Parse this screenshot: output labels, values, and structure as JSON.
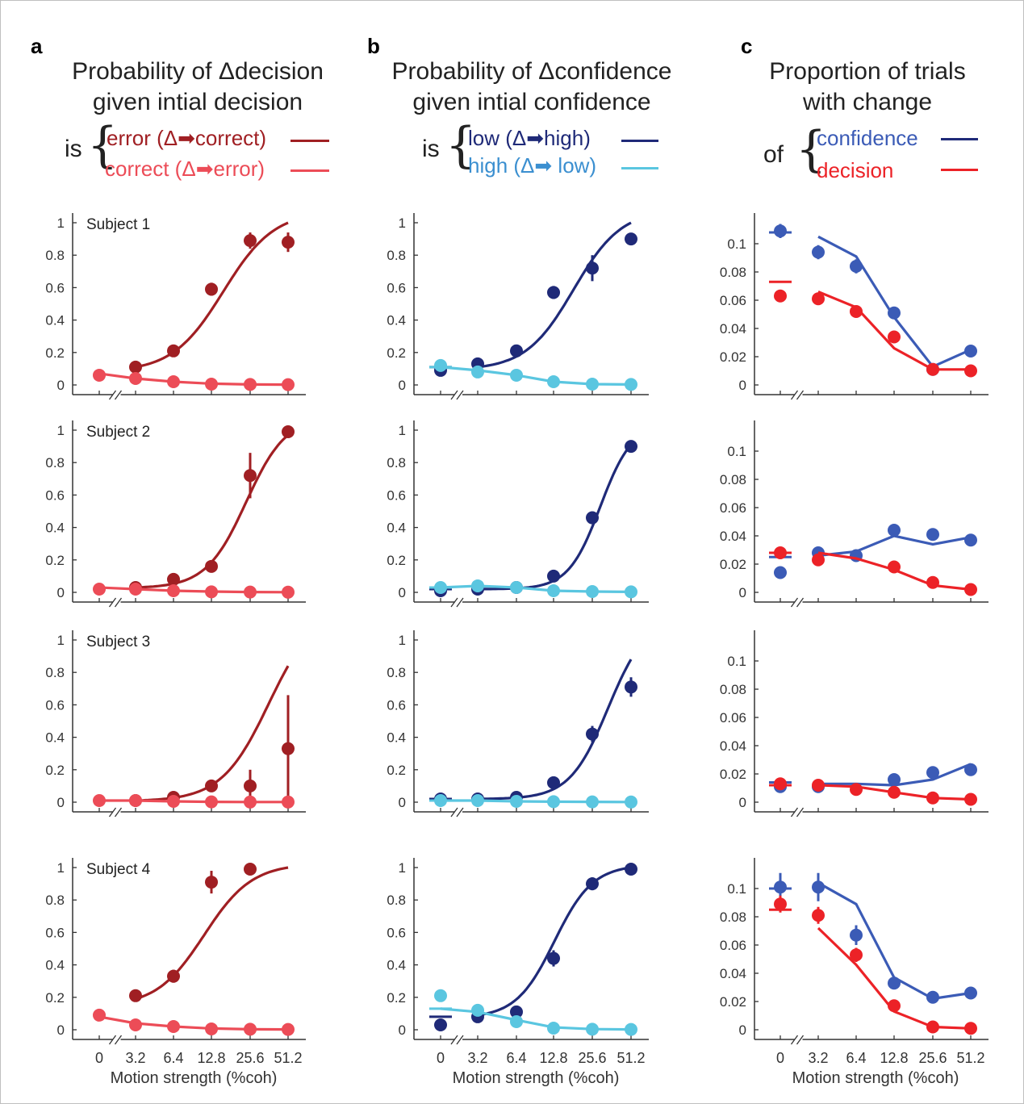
{
  "panels": [
    {
      "letter": "a",
      "title_line1": "Probability of Δdecision",
      "title_line2": "given intial decision",
      "legend_word": "is",
      "legend": [
        {
          "label": "error (Δ➡correct)",
          "color": "#a01f23"
        },
        {
          "label": "correct (Δ➡error)",
          "color": "#ec4c57"
        }
      ]
    },
    {
      "letter": "b",
      "title_line1": "Probability of Δconfidence",
      "title_line2": "given intial confidence",
      "legend_word": "is",
      "legend": [
        {
          "label": "low  (Δ➡high)",
          "color": "#1f2a78"
        },
        {
          "label": "high (Δ➡ low)",
          "color": "#5ac6e0"
        }
      ]
    },
    {
      "letter": "c",
      "title_line1": "Proportion of trials",
      "title_line2": "with change",
      "legend_word": "of",
      "legend": [
        {
          "label": "confidence",
          "color": "#3b5bb6"
        },
        {
          "label": "decision",
          "color": "#ec2227"
        }
      ]
    }
  ],
  "subjects": [
    "Subject 1",
    "Subject 2",
    "Subject 3",
    "Subject 4"
  ],
  "xlabel": "Motion strength (%coh)",
  "xticks": [
    "0",
    "3.2",
    "6.4",
    "12.8",
    "25.6",
    "51.2"
  ],
  "yticks_ab": [
    "0",
    "0.2",
    "0.4",
    "0.6",
    "0.8",
    "1"
  ],
  "yticks_c": [
    "0",
    "0.02",
    "0.04",
    "0.06",
    "0.08",
    "0.1"
  ],
  "colors": {
    "a_error": "#a01f23",
    "a_correct": "#ec4c57",
    "b_low": "#1f2a78",
    "b_high": "#5ac6e0",
    "c_conf_points": "#3b5bb6",
    "c_dec": "#ec2227"
  },
  "chart_data": [
    {
      "panel": "a",
      "subject": "Subject 1",
      "type": "scatter",
      "ylim": [
        0,
        1
      ],
      "categories": [
        "0",
        "3.2",
        "6.4",
        "12.8",
        "25.6",
        "51.2"
      ],
      "series": [
        {
          "name": "error (Δ➡correct)",
          "points": [
            null,
            0.11,
            0.21,
            0.59,
            0.89,
            0.88
          ],
          "err": [
            0,
            0.02,
            0.02,
            0.04,
            0.05,
            0.06
          ],
          "fit_start": 0.11,
          "fit_end": 1.0,
          "fit_mid": 3.3,
          "fit_slope": 1.5
        },
        {
          "name": "correct (Δ➡error)",
          "points": [
            0.06,
            0.04,
            0.02,
            0.005,
            0.003,
            0.002
          ],
          "err": [
            0.01,
            0.01,
            0.01,
            0,
            0,
            0
          ],
          "fit_line": [
            0.07,
            0.04,
            0.02,
            0.008,
            0.003,
            0.002
          ]
        }
      ]
    },
    {
      "panel": "a",
      "subject": "Subject 2",
      "type": "scatter",
      "ylim": [
        0,
        1
      ],
      "categories": [
        "0",
        "3.2",
        "6.4",
        "12.8",
        "25.6",
        "51.2"
      ],
      "series": [
        {
          "name": "error (Δ➡correct)",
          "points": [
            null,
            0.03,
            0.08,
            0.16,
            0.72,
            0.99
          ],
          "err": [
            0,
            0.01,
            0.01,
            0.02,
            0.14,
            0.01
          ],
          "fit_start": 0.03,
          "fit_end": 0.97,
          "fit_mid": 3.9,
          "fit_slope": 1.9
        },
        {
          "name": "correct (Δ➡error)",
          "points": [
            0.02,
            0.02,
            0.01,
            0.003,
            0.002,
            0.001
          ],
          "err": [
            0.01,
            0.01,
            0,
            0,
            0,
            0
          ],
          "fit_line": [
            0.03,
            0.02,
            0.01,
            0.005,
            0.002,
            0.001
          ]
        }
      ]
    },
    {
      "panel": "a",
      "subject": "Subject 3",
      "type": "scatter",
      "ylim": [
        0,
        1
      ],
      "categories": [
        "0",
        "3.2",
        "6.4",
        "12.8",
        "25.6",
        "51.2"
      ],
      "series": [
        {
          "name": "error (Δ➡correct)",
          "points": [
            null,
            0.01,
            0.03,
            0.1,
            0.1,
            0.33
          ],
          "err": [
            0,
            0.01,
            0.01,
            0.03,
            0.1,
            0.33
          ],
          "fit_start": 0.01,
          "fit_end": 0.84,
          "fit_mid": 4.5,
          "fit_slope": 1.6
        },
        {
          "name": "correct (Δ➡error)",
          "points": [
            0.01,
            0.01,
            0.005,
            0.002,
            0.001,
            0.001
          ],
          "err": [
            0,
            0,
            0,
            0,
            0,
            0
          ],
          "fit_line": [
            0.01,
            0.01,
            0.005,
            0.002,
            0.001,
            0.001
          ]
        }
      ]
    },
    {
      "panel": "a",
      "subject": "Subject 4",
      "type": "scatter",
      "ylim": [
        0,
        1
      ],
      "categories": [
        "0",
        "3.2",
        "6.4",
        "12.8",
        "25.6",
        "51.2"
      ],
      "series": [
        {
          "name": "error (Δ➡correct)",
          "points": [
            null,
            0.21,
            0.33,
            0.91,
            0.99,
            null
          ],
          "err": [
            0,
            0.03,
            0.04,
            0.07,
            0.01,
            0
          ],
          "fit_start": 0.19,
          "fit_end": 1.0,
          "fit_mid": 2.8,
          "fit_slope": 1.6
        },
        {
          "name": "correct (Δ➡error)",
          "points": [
            0.09,
            0.03,
            0.02,
            0.005,
            0.003,
            0.002
          ],
          "err": [
            0.01,
            0.01,
            0.01,
            0,
            0,
            0
          ],
          "fit_line": [
            0.08,
            0.04,
            0.02,
            0.008,
            0.003,
            0.002
          ]
        }
      ]
    },
    {
      "panel": "b",
      "subject": "Subject 1",
      "type": "scatter",
      "ylim": [
        0,
        1
      ],
      "categories": [
        "0",
        "3.2",
        "6.4",
        "12.8",
        "25.6",
        "51.2"
      ],
      "series": [
        {
          "name": "low  (Δ➡high)",
          "points": [
            0.09,
            0.13,
            0.21,
            0.57,
            0.72,
            0.9
          ],
          "err": [
            0.01,
            0.01,
            0.02,
            0.04,
            0.08,
            0.03
          ],
          "fit_start": 0.11,
          "fit_end": 1.0,
          "fit_mid": 3.5,
          "fit_slope": 1.6,
          "zero_bar": 0.11
        },
        {
          "name": "high (Δ➡ low)",
          "points": [
            0.12,
            0.08,
            0.06,
            0.02,
            0.005,
            0.003
          ],
          "err": [
            0.01,
            0.01,
            0.01,
            0,
            0,
            0
          ],
          "fit_line": [
            0.11,
            0.09,
            0.06,
            0.02,
            0.005,
            0.003
          ],
          "zero_bar": 0.11
        }
      ]
    },
    {
      "panel": "b",
      "subject": "Subject 2",
      "type": "scatter",
      "ylim": [
        0,
        1
      ],
      "categories": [
        "0",
        "3.2",
        "6.4",
        "12.8",
        "25.6",
        "51.2"
      ],
      "series": [
        {
          "name": "low  (Δ➡high)",
          "points": [
            0.01,
            0.02,
            0.03,
            0.1,
            0.46,
            0.9
          ],
          "err": [
            0.01,
            0.01,
            0.01,
            0.01,
            0.03,
            0.02
          ],
          "fit_start": 0.02,
          "fit_end": 0.91,
          "fit_mid": 4.2,
          "fit_slope": 2.4,
          "zero_bar": 0.02
        },
        {
          "name": "high (Δ➡ low)",
          "points": [
            0.03,
            0.04,
            0.03,
            0.01,
            0.005,
            0.003
          ],
          "err": [
            0.01,
            0.01,
            0,
            0,
            0,
            0
          ],
          "fit_line": [
            0.03,
            0.04,
            0.03,
            0.01,
            0.005,
            0.003
          ],
          "zero_bar": 0.03
        }
      ]
    },
    {
      "panel": "b",
      "subject": "Subject 3",
      "type": "scatter",
      "ylim": [
        0,
        1
      ],
      "categories": [
        "0",
        "3.2",
        "6.4",
        "12.8",
        "25.6",
        "51.2"
      ],
      "series": [
        {
          "name": "low  (Δ➡high)",
          "points": [
            0.02,
            0.02,
            0.03,
            0.12,
            0.42,
            0.71
          ],
          "err": [
            0,
            0,
            0.01,
            0.02,
            0.05,
            0.06
          ],
          "fit_start": 0.02,
          "fit_end": 0.88,
          "fit_mid": 4.4,
          "fit_slope": 2.0,
          "zero_bar": 0.02
        },
        {
          "name": "high (Δ➡ low)",
          "points": [
            0.01,
            0.01,
            0.005,
            0.003,
            0.002,
            0.001
          ],
          "err": [
            0,
            0,
            0,
            0,
            0,
            0
          ],
          "fit_line": [
            0.01,
            0.01,
            0.005,
            0.003,
            0.002,
            0.001
          ],
          "zero_bar": 0.01
        }
      ]
    },
    {
      "panel": "b",
      "subject": "Subject 4",
      "type": "scatter",
      "ylim": [
        0,
        1
      ],
      "categories": [
        "0",
        "3.2",
        "6.4",
        "12.8",
        "25.6",
        "51.2"
      ],
      "series": [
        {
          "name": "low  (Δ➡high)",
          "points": [
            0.03,
            0.08,
            0.11,
            0.44,
            0.9,
            0.99
          ],
          "err": [
            0,
            0.01,
            0.01,
            0.05,
            0.04,
            0.01
          ],
          "fit_start": 0.09,
          "fit_end": 1.0,
          "fit_mid": 3.0,
          "fit_slope": 2.0,
          "zero_bar": 0.08
        },
        {
          "name": "high (Δ➡ low)",
          "points": [
            0.21,
            0.12,
            0.05,
            0.01,
            0.003,
            0.002
          ],
          "err": [
            0.01,
            0.02,
            0.01,
            0,
            0,
            0
          ],
          "fit_line": [
            0.13,
            0.11,
            0.06,
            0.015,
            0.004,
            0.002
          ],
          "zero_bar": 0.13
        }
      ]
    },
    {
      "panel": "c",
      "subject": "Subject 1",
      "type": "line",
      "ylim": [
        0,
        0.12
      ],
      "categories": [
        "0",
        "3.2",
        "6.4",
        "12.8",
        "25.6",
        "51.2"
      ],
      "series": [
        {
          "name": "confidence",
          "points": [
            0.109,
            0.094,
            0.084,
            0.051,
            0.011,
            0.024
          ],
          "err": [
            0.005,
            0.005,
            0.005,
            0.004,
            0.002,
            0.002
          ],
          "fit_line": [
            null,
            0.105,
            0.091,
            0.048,
            0.013,
            0.025
          ],
          "zero_bar": 0.108
        },
        {
          "name": "decision",
          "points": [
            0.063,
            0.061,
            0.052,
            0.034,
            0.011,
            0.01
          ],
          "err": [
            0.004,
            0.004,
            0.004,
            0.003,
            0.002,
            0.002
          ],
          "fit_line": [
            null,
            0.066,
            0.055,
            0.026,
            0.011,
            0.011
          ],
          "zero_bar": 0.073
        }
      ]
    },
    {
      "panel": "c",
      "subject": "Subject 2",
      "type": "line",
      "ylim": [
        0,
        0.12
      ],
      "categories": [
        "0",
        "3.2",
        "6.4",
        "12.8",
        "25.6",
        "51.2"
      ],
      "series": [
        {
          "name": "confidence",
          "points": [
            0.014,
            0.028,
            0.026,
            0.044,
            0.041,
            0.037
          ],
          "err": [
            0.003,
            0.003,
            0.003,
            0.004,
            0.004,
            0.004
          ],
          "fit_line": [
            null,
            0.026,
            0.029,
            0.04,
            0.034,
            0.039
          ],
          "zero_bar": 0.025
        },
        {
          "name": "decision",
          "points": [
            0.028,
            0.023,
            null,
            0.018,
            0.007,
            0.002
          ],
          "err": [
            0.002,
            0.002,
            0,
            0.002,
            0.001,
            0.001
          ],
          "fit_line": [
            null,
            0.028,
            0.024,
            0.016,
            0.005,
            0.002
          ],
          "zero_bar": 0.028
        }
      ]
    },
    {
      "panel": "c",
      "subject": "Subject 3",
      "type": "line",
      "ylim": [
        0,
        0.12
      ],
      "categories": [
        "0",
        "3.2",
        "6.4",
        "12.8",
        "25.6",
        "51.2"
      ],
      "series": [
        {
          "name": "confidence",
          "points": [
            0.011,
            0.011,
            null,
            0.016,
            0.021,
            0.023
          ],
          "err": [
            0.002,
            0.002,
            0,
            0.002,
            0.002,
            0.002
          ],
          "fit_line": [
            null,
            0.013,
            0.013,
            0.012,
            0.016,
            0.027
          ],
          "zero_bar": 0.014
        },
        {
          "name": "decision",
          "points": [
            0.013,
            0.012,
            0.009,
            0.007,
            0.003,
            0.002
          ],
          "err": [
            0.001,
            0.001,
            0.001,
            0.001,
            0.001,
            0.001
          ],
          "fit_line": [
            null,
            0.012,
            0.011,
            0.007,
            0.003,
            0.002
          ],
          "zero_bar": 0.012
        }
      ]
    },
    {
      "panel": "c",
      "subject": "Subject 4",
      "type": "line",
      "ylim": [
        0,
        0.12
      ],
      "categories": [
        "0",
        "3.2",
        "6.4",
        "12.8",
        "25.6",
        "51.2"
      ],
      "series": [
        {
          "name": "confidence",
          "points": [
            0.101,
            0.101,
            0.067,
            0.033,
            0.023,
            0.026
          ],
          "err": [
            0.01,
            0.01,
            0.007,
            0.004,
            0.004,
            0.004
          ],
          "fit_line": [
            null,
            0.104,
            0.089,
            0.037,
            0.022,
            0.026
          ],
          "zero_bar": 0.1
        },
        {
          "name": "decision",
          "points": [
            0.089,
            0.081,
            0.053,
            0.017,
            0.002,
            0.001
          ],
          "err": [
            0.006,
            0.006,
            0.005,
            0.002,
            0.001,
            0.001
          ],
          "fit_line": [
            null,
            0.072,
            0.046,
            0.013,
            0.002,
            0.001
          ],
          "zero_bar": 0.085
        }
      ]
    }
  ]
}
